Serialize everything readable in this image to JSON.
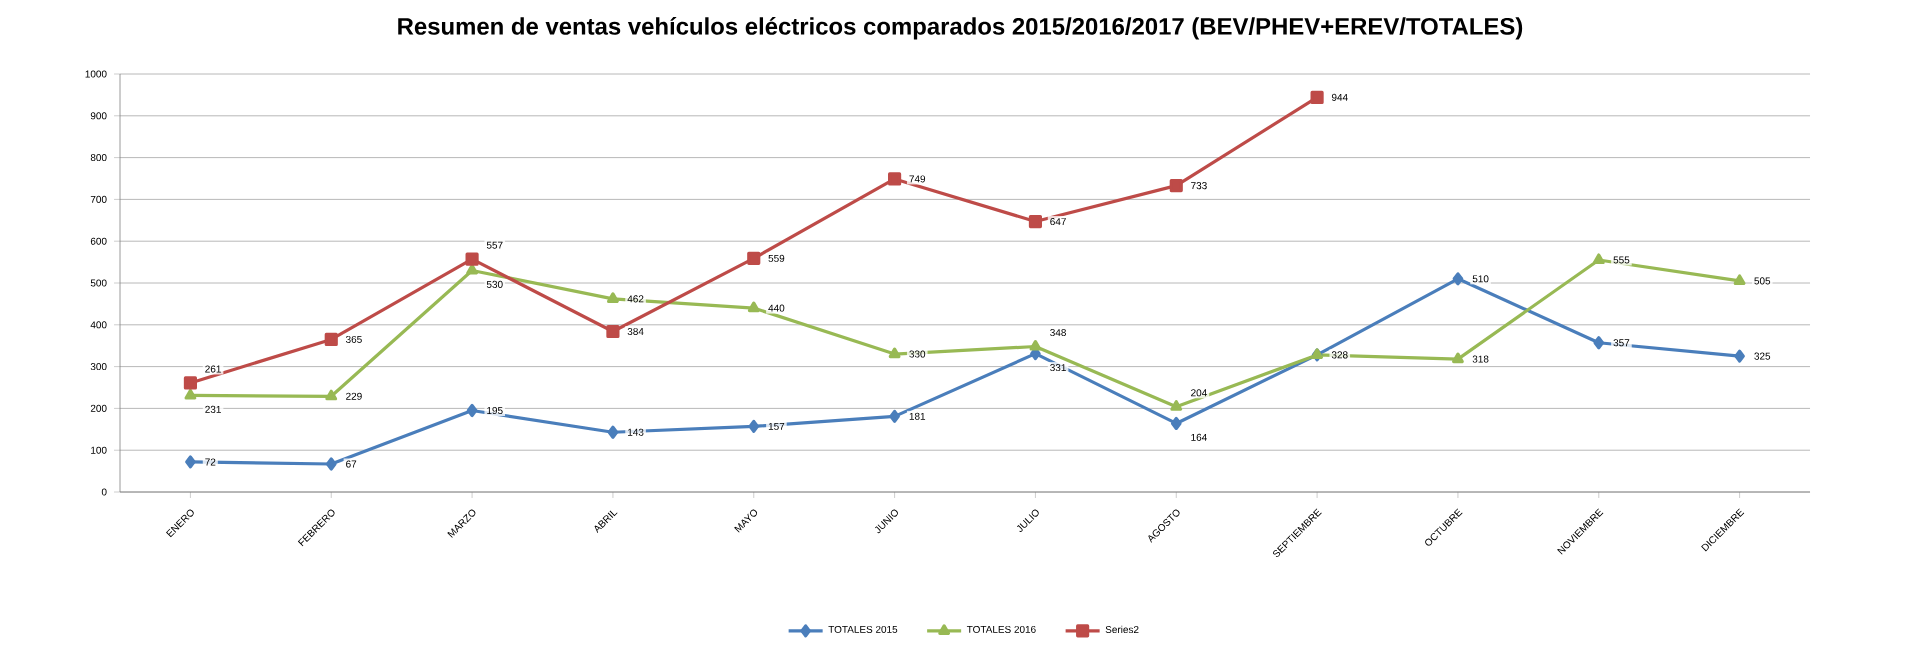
{
  "chart_data": {
    "type": "line",
    "title": "Resumen de ventas vehículos eléctricos comparados 2015/2016/2017  (BEV/PHEV+EREV/TOTALES)",
    "categories": [
      "ENERO",
      "FEBRERO",
      "MARZO",
      "ABRIL",
      "MAYO",
      "JUNIO",
      "JULIO",
      "AGOSTO",
      "SEPTIEMBRE",
      "OCTUBRE",
      "NOVIEMBRE",
      "DICIEMBRE"
    ],
    "series": [
      {
        "name": "TOTALES 2015",
        "color": "#4a7ebb",
        "marker": "diamond",
        "values": [
          72,
          67,
          195,
          143,
          157,
          181,
          331,
          164,
          328,
          510,
          357,
          325
        ],
        "value_labels": [
          "72",
          "67",
          "195",
          "143",
          "157",
          "181",
          "331",
          "164",
          null,
          "510",
          "357",
          "325"
        ]
      },
      {
        "name": "TOTALES 2016",
        "color": "#98b954",
        "marker": "triangle",
        "values": [
          231,
          229,
          530,
          462,
          440,
          330,
          348,
          204,
          328,
          318,
          555,
          505
        ],
        "value_labels": [
          "231",
          "229",
          "530",
          "462",
          "440",
          "330",
          "348",
          "204",
          "328",
          "318",
          "555",
          "505"
        ]
      },
      {
        "name": "Series2",
        "color": "#be4b48",
        "marker": "square",
        "values": [
          261,
          365,
          557,
          384,
          559,
          749,
          647,
          733,
          944,
          null,
          null,
          null
        ],
        "value_labels": [
          "261",
          "365",
          "557",
          "384",
          "559",
          "749",
          "647",
          "733",
          "944",
          null,
          null,
          null
        ]
      }
    ],
    "ylim": [
      0,
      1000
    ],
    "yticks": [
      0,
      100,
      200,
      300,
      400,
      500,
      600,
      700,
      800,
      900,
      1000
    ],
    "grid": "y",
    "legend": "bottom",
    "line_style": "solid"
  }
}
